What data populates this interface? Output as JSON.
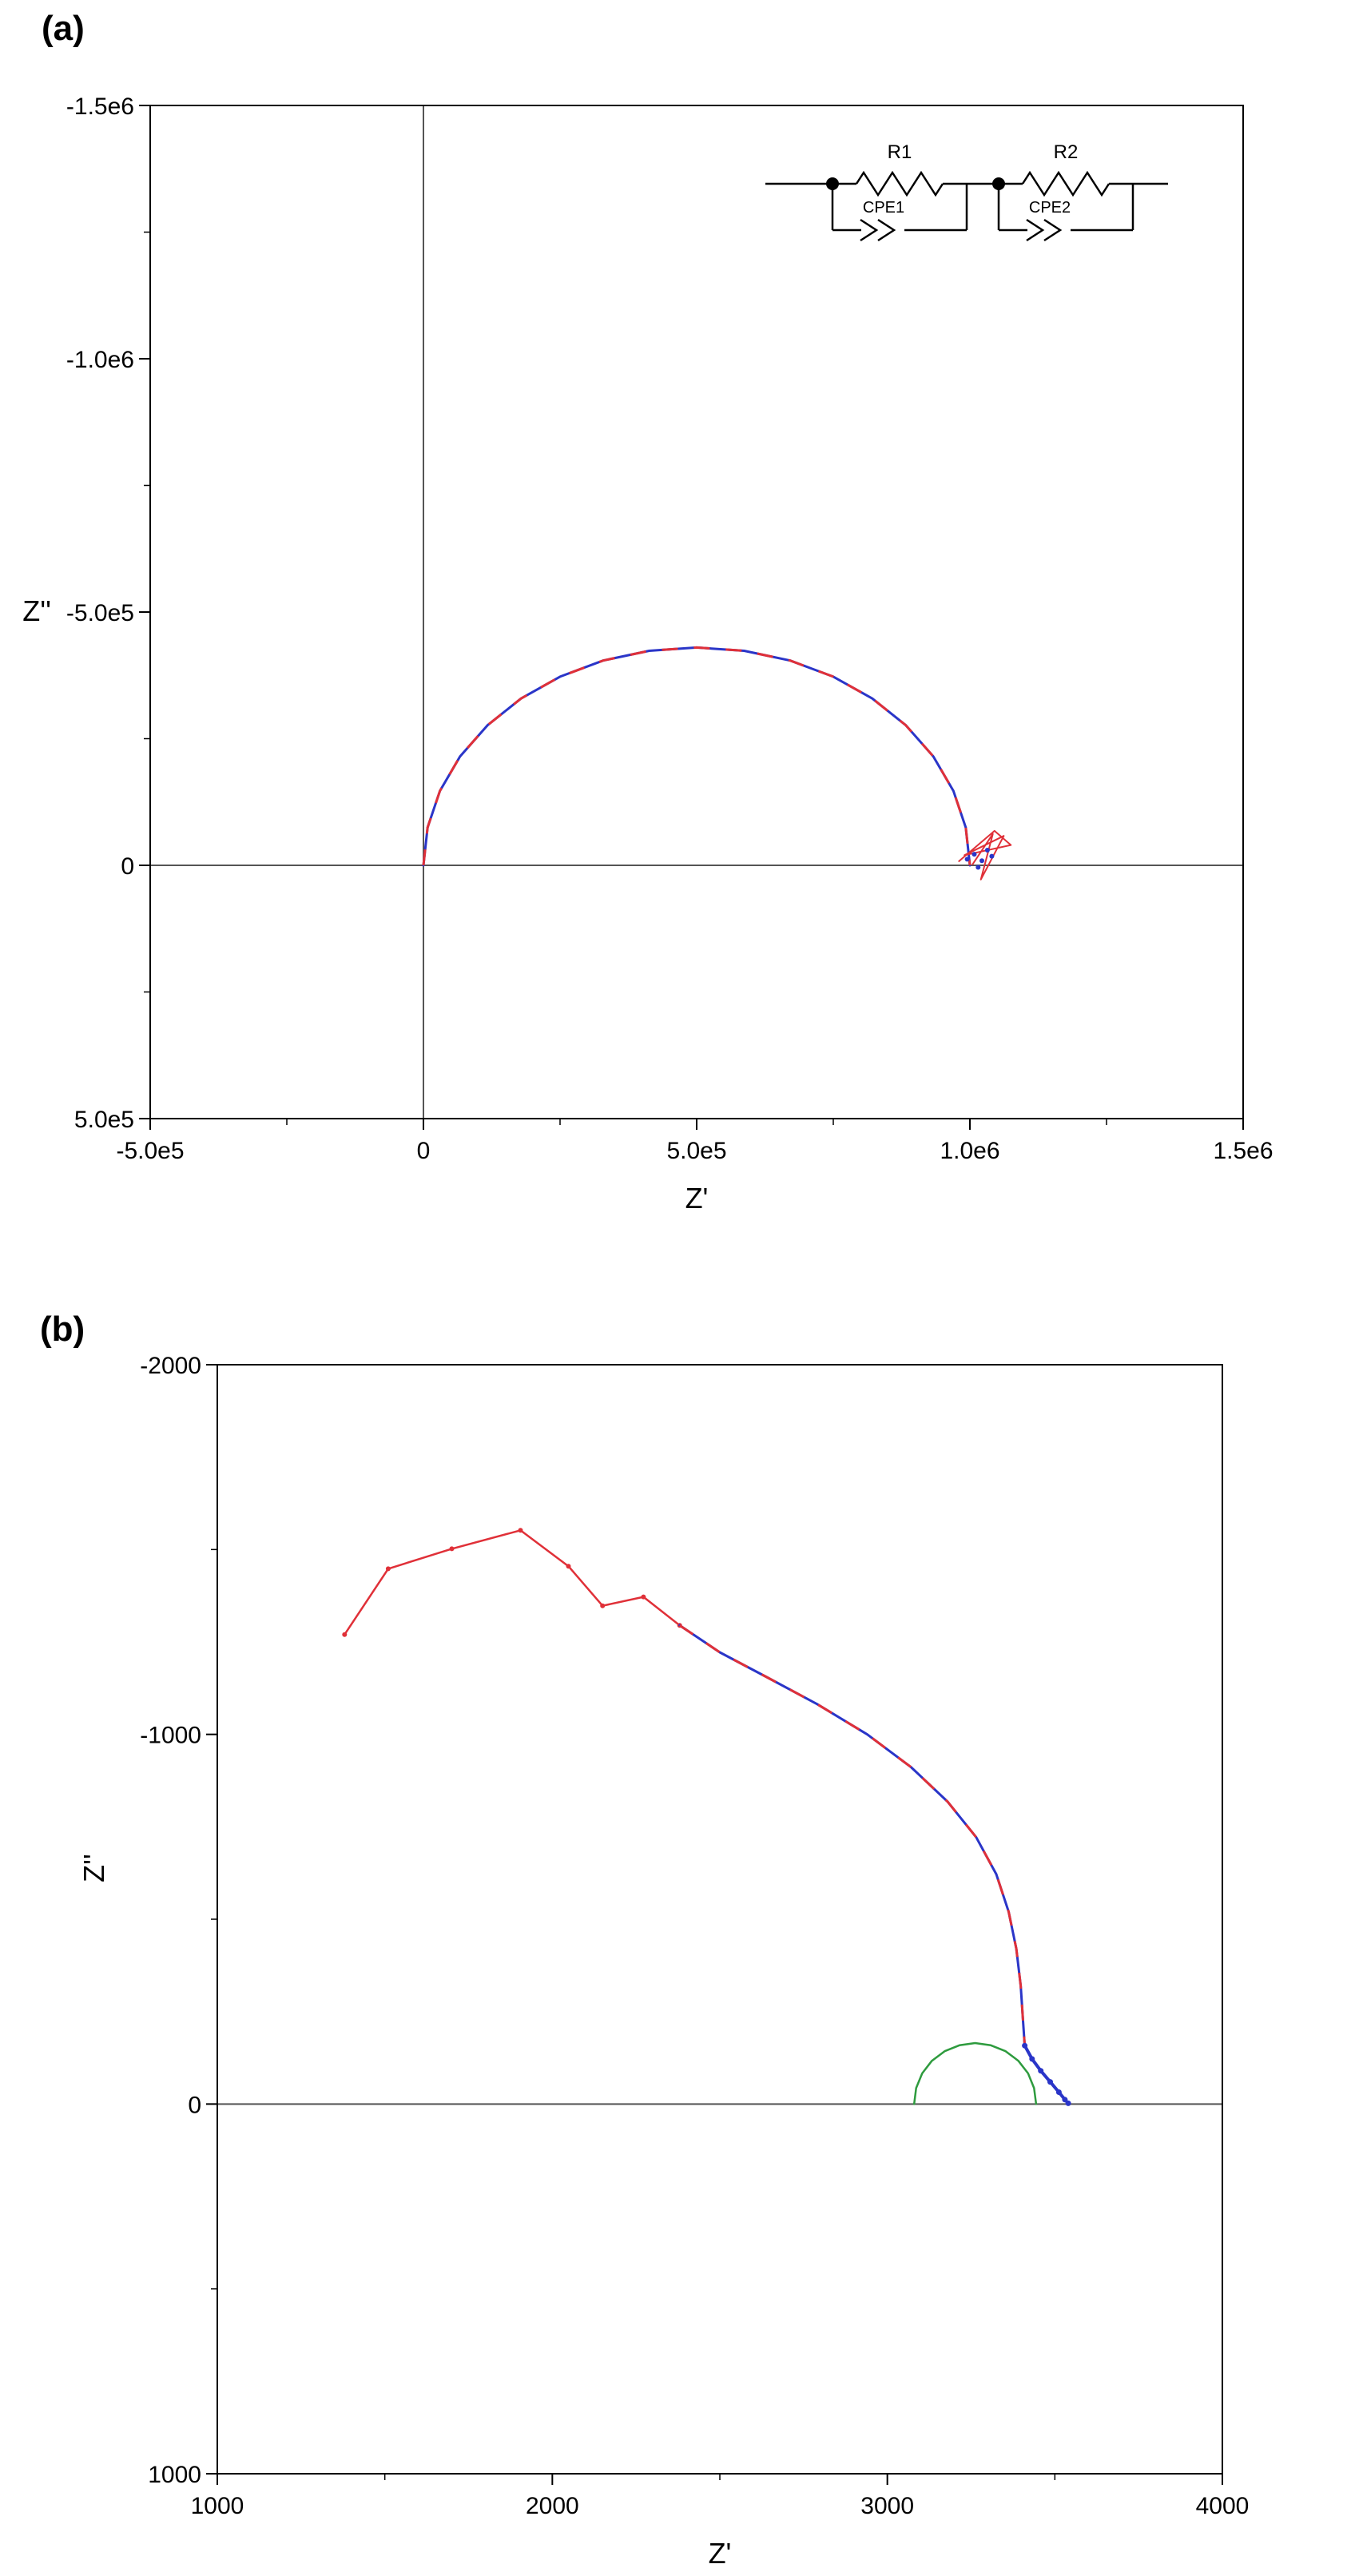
{
  "figure": {
    "background": "#ffffff",
    "panel_a_label": "(a)",
    "panel_b_label": "(b)"
  },
  "colors": {
    "data_blue": "#2a35c8",
    "fit_red": "#e03038",
    "fit_green": "#2e9b3e",
    "axis_black": "#000000",
    "zero_line_gray": "#555555"
  },
  "chart_data": [
    {
      "id": "a",
      "type": "scatter",
      "description": "Nyquist impedance plot (data with fit) and equivalent-circuit inset",
      "xlabel": "Z'",
      "ylabel": "Z''",
      "xlim": [
        -500000,
        1500000
      ],
      "ylim": [
        -1500000,
        500000
      ],
      "y_direction": "negative-up",
      "grid": false,
      "legend": false,
      "x_tick_values": [
        -500000,
        0,
        500000,
        1000000,
        1500000
      ],
      "x_tick_labels": [
        "-5.0e5",
        "0",
        "5.0e5",
        "1.0e6",
        "1.5e6"
      ],
      "y_tick_values": [
        -1500000,
        -1000000,
        -500000,
        0,
        500000
      ],
      "y_tick_labels": [
        "-1.5e6",
        "-1.0e6",
        "-5.0e5",
        "0",
        "5.0e5"
      ],
      "x_minor_step": 250000,
      "y_minor_step": 250000,
      "zero_lines": [
        "vertical",
        "horizontal"
      ],
      "ylabel_layout": "horizontal",
      "ylabel_anchor": -500000,
      "series": [
        {
          "name": "data-and-fit-semicircle",
          "color": "#2a35c8",
          "overlay_dash_color": "#e03038",
          "style": "solid",
          "width": 3,
          "points": [
            [
              0,
              0
            ],
            [
              7600,
              -74700
            ],
            [
              30200,
              -147100
            ],
            [
              66990,
              -215000
            ],
            [
              117200,
              -276500
            ],
            [
              178600,
              -329400
            ],
            [
              250000,
              -372400
            ],
            [
              329000,
              -404200
            ],
            [
              413200,
              -423500
            ],
            [
              500000,
              -430000
            ],
            [
              586800,
              -423500
            ],
            [
              671000,
              -404200
            ],
            [
              750000,
              -372400
            ],
            [
              821400,
              -329400
            ],
            [
              882800,
              -276500
            ],
            [
              933000,
              -215000
            ],
            [
              969800,
              -147100
            ],
            [
              992400,
              -74700
            ],
            [
              1000000,
              0
            ]
          ]
        },
        {
          "name": "low-frequency-noise",
          "color": "#e03038",
          "style": "solid",
          "width": 2,
          "points": [
            [
              980000,
              -8000
            ],
            [
              1045000,
              -68000
            ],
            [
              1075000,
              -40000
            ],
            [
              990000,
              -20000
            ],
            [
              1062000,
              -58000
            ],
            [
              1020000,
              28000
            ],
            [
              1042000,
              -62000
            ],
            [
              1005000,
              -2000
            ]
          ]
        },
        {
          "name": "low-frequency-points",
          "color": "#2a35c8",
          "style": "none",
          "marker": "dot",
          "marker_size": 3,
          "points": [
            [
              995000,
              -12000
            ],
            [
              1008000,
              -22000
            ],
            [
              1022000,
              -9000
            ],
            [
              1032000,
              -30000
            ],
            [
              1015000,
              4000
            ],
            [
              1040000,
              -18000
            ]
          ]
        }
      ],
      "inset": {
        "type": "equivalent-circuit",
        "topology": "(R1 || CPE1) in series with (R2 || CPE2)",
        "labels": [
          "R1",
          "CPE1",
          "R2",
          "CPE2"
        ]
      }
    },
    {
      "id": "b",
      "type": "line",
      "description": "Zoomed Nyquist plot of high-frequency region with fit semicircle",
      "xlabel": "Z'",
      "ylabel": "Z''",
      "xlim": [
        1000,
        4000
      ],
      "ylim": [
        -2000,
        1000
      ],
      "y_direction": "negative-up",
      "grid": false,
      "legend": false,
      "x_tick_values": [
        1000,
        2000,
        3000,
        4000
      ],
      "x_tick_labels": [
        "1000",
        "2000",
        "3000",
        "4000"
      ],
      "y_tick_values": [
        -2000,
        -1000,
        0,
        1000
      ],
      "y_tick_labels": [
        "-2000",
        "-1000",
        "0",
        "1000"
      ],
      "x_minor_step": 500,
      "y_minor_step": 500,
      "zero_lines": [
        "horizontal"
      ],
      "ylabel_layout": "rotated",
      "series": [
        {
          "name": "low-frequency-arc",
          "color": "#e03038",
          "style": "solid",
          "width": 2.5,
          "marker": "dot",
          "marker_size": 3,
          "points": [
            [
              1380,
              -1270
            ],
            [
              1510,
              -1448
            ],
            [
              1700,
              -1502
            ],
            [
              1905,
              -1552
            ],
            [
              2048,
              -1455
            ],
            [
              2150,
              -1348
            ],
            [
              2272,
              -1372
            ],
            [
              2380,
              -1295
            ]
          ]
        },
        {
          "name": "mid-frequency-branch-data-fit",
          "color": "#2a35c8",
          "overlay_dash_color": "#e03038",
          "style": "solid",
          "width": 3,
          "points": [
            [
              2380,
              -1295
            ],
            [
              2500,
              -1222
            ],
            [
              2640,
              -1155
            ],
            [
              2790,
              -1082
            ],
            [
              2940,
              -1000
            ],
            [
              3070,
              -912
            ],
            [
              3180,
              -818
            ],
            [
              3265,
              -722
            ],
            [
              3325,
              -622
            ],
            [
              3362,
              -520
            ],
            [
              3385,
              -420
            ],
            [
              3398,
              -320
            ],
            [
              3405,
              -225
            ],
            [
              3410,
              -158
            ]
          ]
        },
        {
          "name": "fit-semicircle",
          "color": "#2e9b3e",
          "style": "solid",
          "width": 2.5,
          "points": [
            [
              3080,
              0
            ],
            [
              3086,
              -43
            ],
            [
              3104,
              -83
            ],
            [
              3133,
              -117
            ],
            [
              3171,
              -143
            ],
            [
              3215,
              -159
            ],
            [
              3262,
              -165
            ],
            [
              3309,
              -159
            ],
            [
              3353,
              -143
            ],
            [
              3391,
              -117
            ],
            [
              3420,
              -83
            ],
            [
              3438,
              -43
            ],
            [
              3444,
              0
            ]
          ]
        },
        {
          "name": "high-frequency-data",
          "color": "#2a35c8",
          "style": "solid",
          "width": 4,
          "marker": "dot",
          "marker_size": 3.5,
          "points": [
            [
              3410,
              -158
            ],
            [
              3432,
              -122
            ],
            [
              3458,
              -90
            ],
            [
              3486,
              -60
            ],
            [
              3512,
              -32
            ],
            [
              3530,
              -12
            ],
            [
              3540,
              -2
            ]
          ]
        }
      ]
    }
  ]
}
